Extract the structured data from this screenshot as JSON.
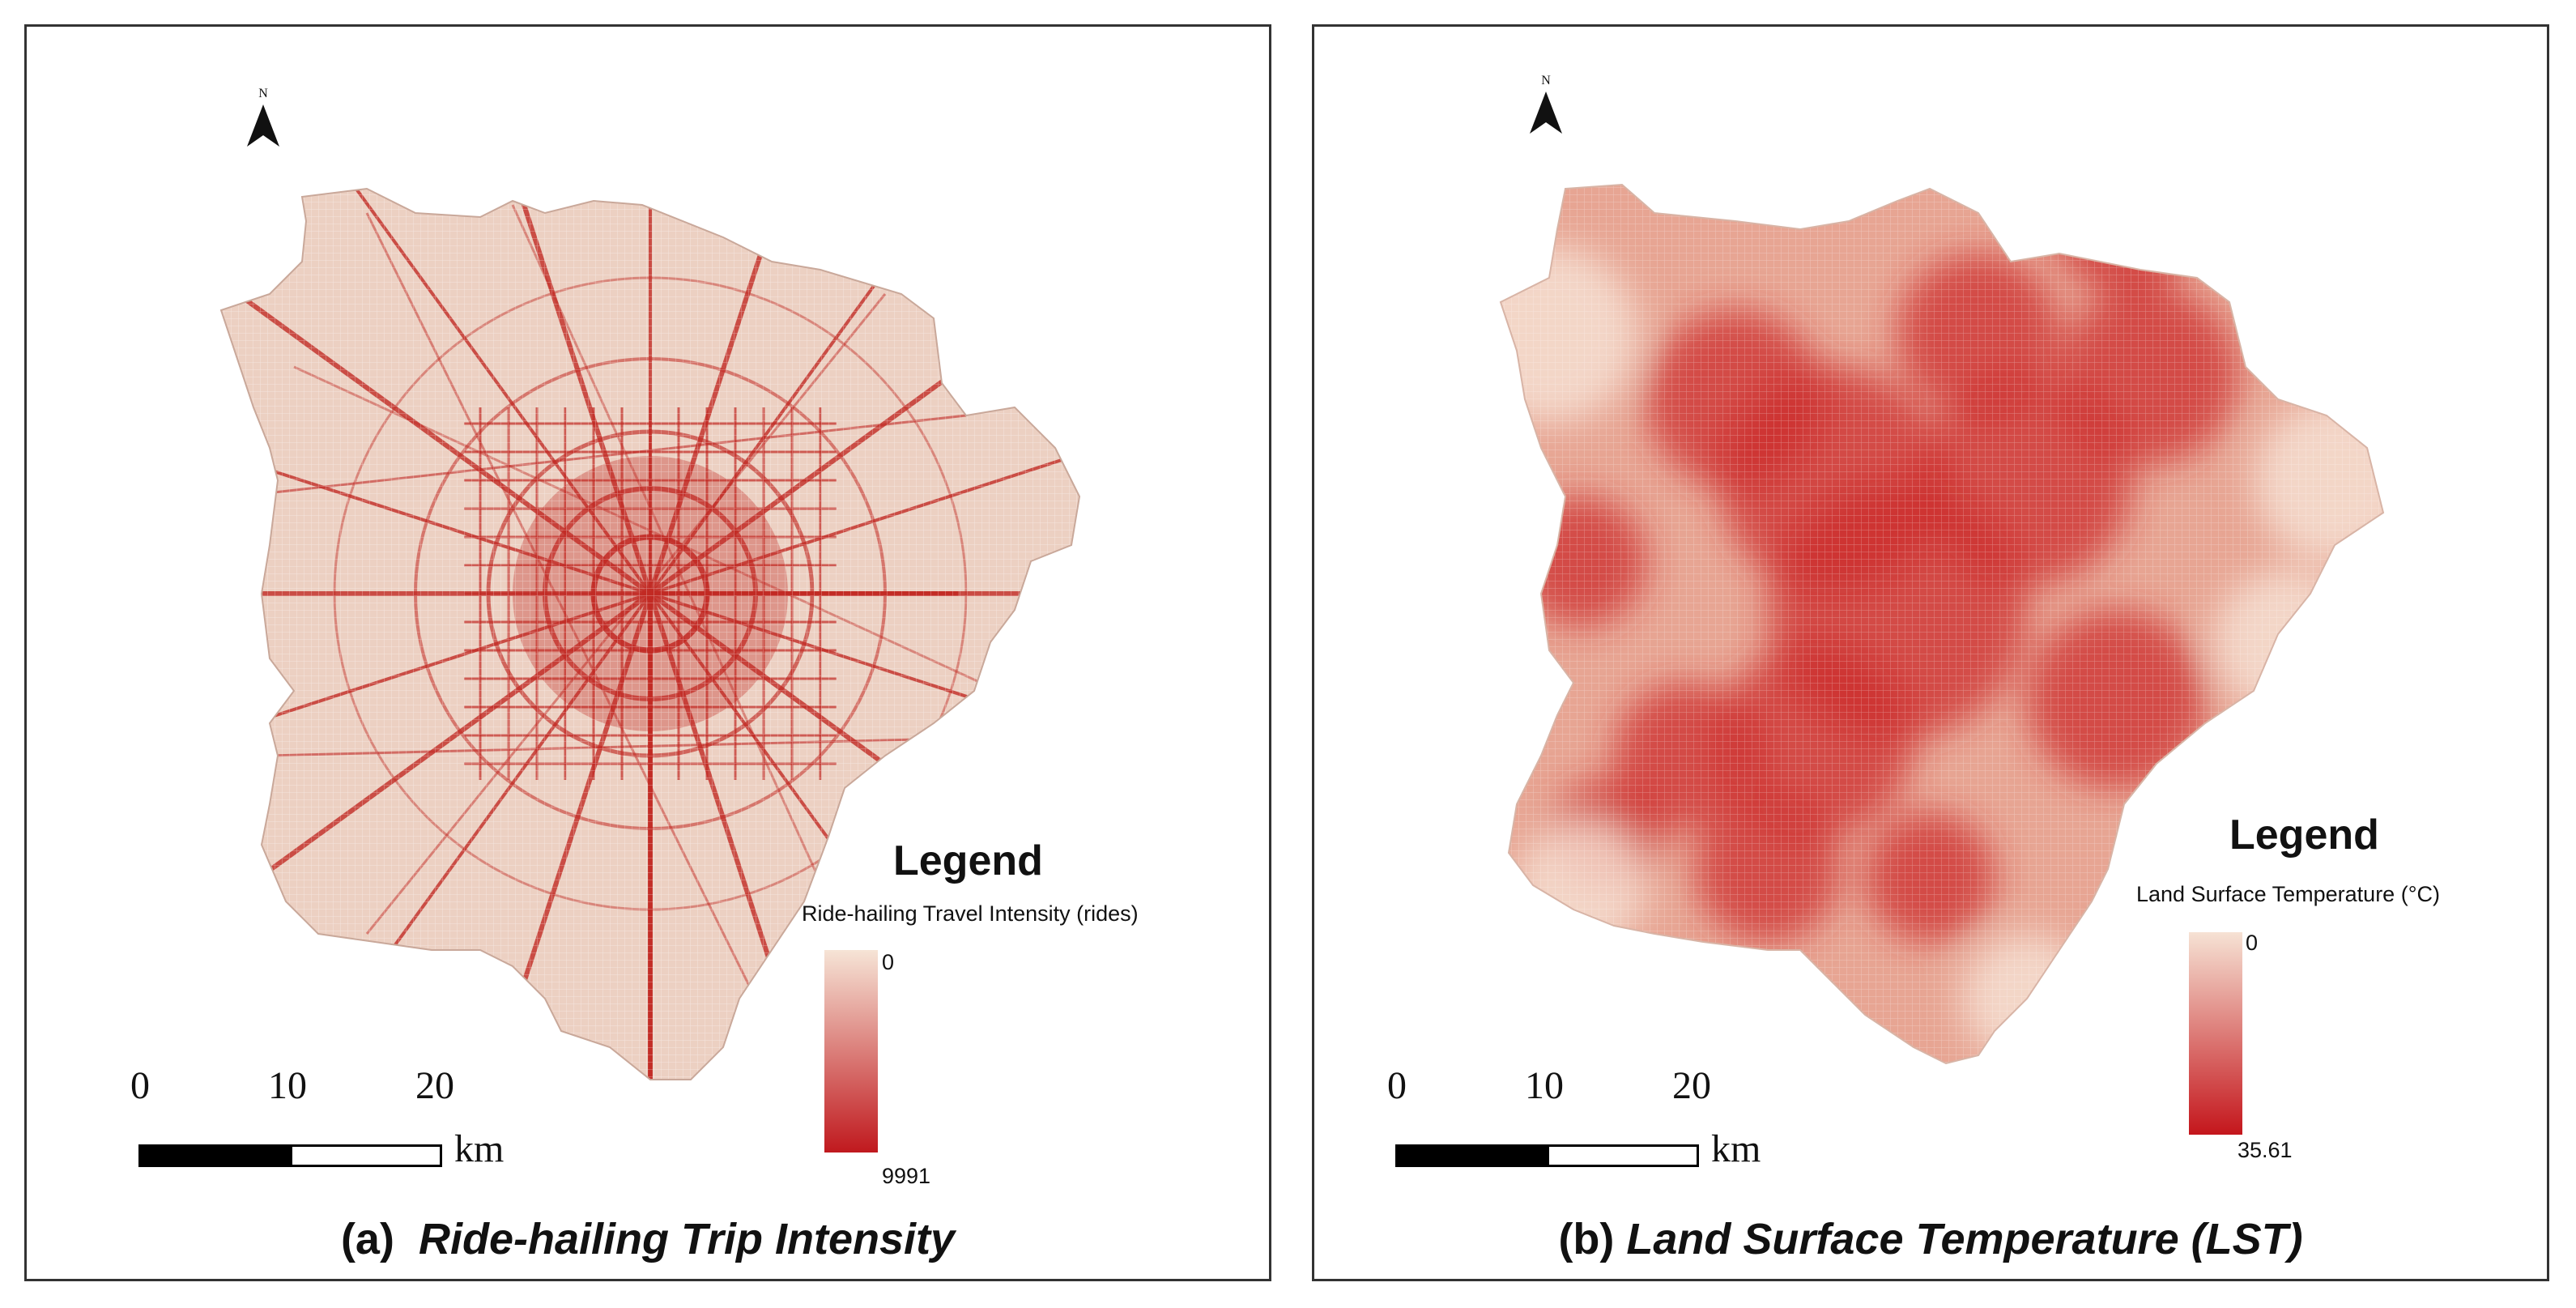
{
  "panels": [
    {
      "letter": "(a)",
      "title": "Ride-hailing Trip Intensity",
      "north_label": "N",
      "legend": {
        "title": "Legend",
        "subtitle": "Ride-hailing Travel Intensity (rides)",
        "min_label": "0",
        "max_label": "9991",
        "color_low": "#f6e4d6",
        "color_high": "#c0191e"
      },
      "scale": {
        "ticks": [
          "0",
          "10",
          "20"
        ],
        "unit": "km"
      },
      "colors": {
        "base": "#ecd0c2",
        "road": "#c22a24"
      }
    },
    {
      "letter": "(b)",
      "title": "Land Surface Temperature (LST)",
      "north_label": "N",
      "legend": {
        "title": "Legend",
        "subtitle": "Land Surface Temperature (°C)",
        "min_label": "0",
        "max_label": "35.61",
        "color_low": "#f6e2d4",
        "color_high": "#c4161c"
      },
      "scale": {
        "ticks": [
          "0",
          "10",
          "20"
        ],
        "unit": "km"
      },
      "colors": {
        "base": "#e7a593",
        "hot": "#cc2f2c"
      }
    }
  ]
}
